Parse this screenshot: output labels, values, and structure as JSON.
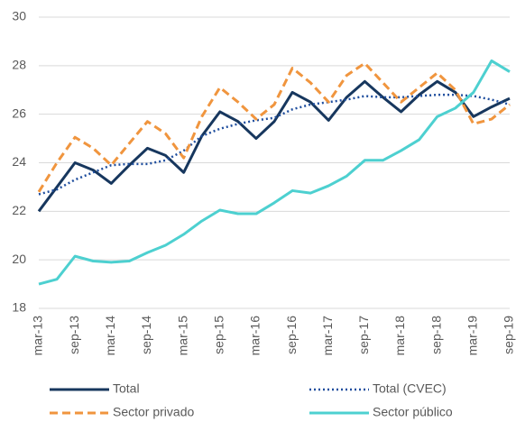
{
  "chart_data": {
    "type": "line",
    "categories": [
      "mar-13",
      null,
      "sep-13",
      null,
      "mar-14",
      null,
      "sep-14",
      null,
      "mar-15",
      null,
      "sep-15",
      null,
      "mar-16",
      null,
      "sep-16",
      null,
      "mar-17",
      null,
      "sep-17",
      null,
      "mar-18",
      null,
      "sep-18",
      null,
      "mar-19",
      null,
      "sep-19"
    ],
    "series": [
      {
        "name": "Total",
        "color": "#17375e",
        "style": "solid",
        "values": [
          22.0,
          23.0,
          24.0,
          23.7,
          23.15,
          23.9,
          24.6,
          24.3,
          23.6,
          25.1,
          26.1,
          25.7,
          25.0,
          25.7,
          26.9,
          26.5,
          25.75,
          26.7,
          27.35,
          26.7,
          26.1,
          26.8,
          27.35,
          26.9,
          25.9,
          26.3,
          26.65
        ]
      },
      {
        "name": "Total (CVEC)",
        "color": "#1f4e9e",
        "style": "dotted",
        "values": [
          22.7,
          22.9,
          23.3,
          23.6,
          23.9,
          23.95,
          23.95,
          24.1,
          24.5,
          25.1,
          25.4,
          25.6,
          25.75,
          25.85,
          26.2,
          26.4,
          26.5,
          26.6,
          26.75,
          26.7,
          26.7,
          26.75,
          26.8,
          26.8,
          26.75,
          26.6,
          26.4
        ]
      },
      {
        "name": "Sector privado",
        "color": "#f0953e",
        "style": "dashed",
        "values": [
          22.8,
          24.0,
          25.05,
          24.6,
          23.9,
          24.8,
          25.7,
          25.2,
          24.2,
          25.9,
          27.1,
          26.5,
          25.8,
          26.4,
          27.9,
          27.3,
          26.5,
          27.6,
          28.1,
          27.3,
          26.5,
          27.1,
          27.7,
          27.0,
          25.6,
          25.8,
          26.4
        ]
      },
      {
        "name": "Sector público",
        "color": "#4dd0d0",
        "style": "solid",
        "values": [
          19.0,
          19.2,
          20.15,
          19.95,
          19.9,
          19.95,
          20.3,
          20.6,
          21.05,
          21.6,
          22.05,
          21.9,
          21.9,
          22.35,
          22.85,
          22.75,
          23.05,
          23.45,
          24.1,
          24.1,
          24.5,
          24.95,
          25.9,
          26.25,
          26.9,
          28.2,
          27.75
        ]
      }
    ],
    "ylim": [
      18,
      30
    ],
    "yticks": [
      18,
      20,
      22,
      24,
      26,
      28,
      30
    ],
    "grid": true,
    "legend_position": "bottom"
  }
}
